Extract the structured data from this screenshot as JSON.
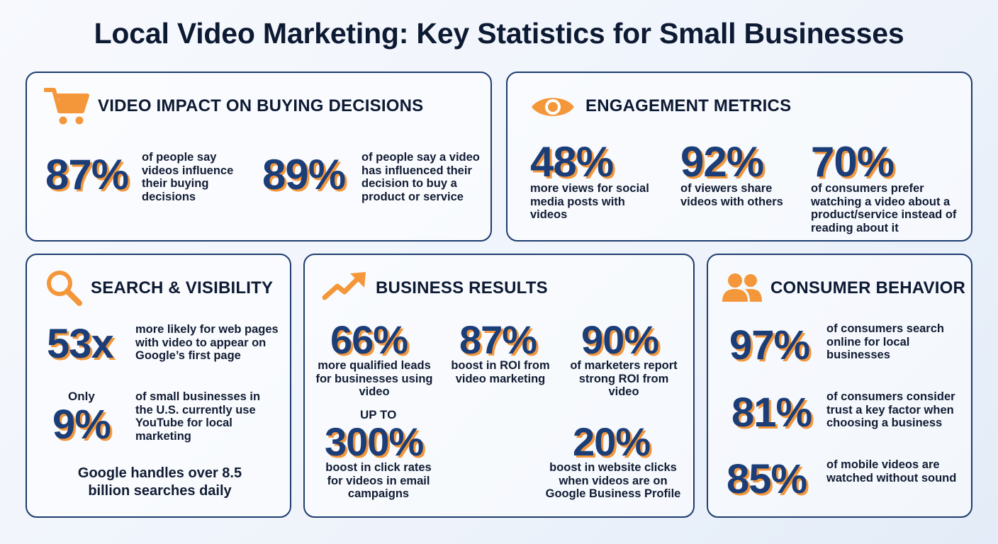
{
  "title": "Local Video Marketing: Key Statistics for Small Businesses",
  "colors": {
    "accent": "#f4973b",
    "number": "#1b3d78",
    "border": "#1e3c6e",
    "text": "#0d1a33"
  },
  "buying": {
    "icon": "shopping-cart-icon",
    "title": "VIDEO IMPACT ON BUYING DECISIONS",
    "stat1": {
      "value": "87%",
      "text": "of people say videos influence their buying decisions"
    },
    "stat2": {
      "value": "89%",
      "text": "of people say a video has influenced their decision to buy a product or service"
    }
  },
  "engagement": {
    "icon": "eye-icon",
    "title": "ENGAGEMENT METRICS",
    "stat1": {
      "value": "48%",
      "text": "more views for social media posts with videos"
    },
    "stat2": {
      "value": "92%",
      "text": "of viewers share videos with others"
    },
    "stat3": {
      "value": "70%",
      "text": "of consumers prefer watching a video about a product/service instead of reading about it"
    }
  },
  "search": {
    "icon": "magnifier-icon",
    "title": "SEARCH & VISIBILITY",
    "stat1": {
      "value": "53x",
      "text": "more likely for web pages with video to appear on Google’s first page"
    },
    "stat2": {
      "prefix": "Only",
      "value": "9%",
      "text": "of small businesses in the U.S. currently use YouTube for local marketing"
    },
    "footer": "Google handles over 8.5 billion searches daily"
  },
  "business": {
    "icon": "trending-up-icon",
    "title": "BUSINESS RESULTS",
    "stat1": {
      "value": "66%",
      "text": "more qualified leads for businesses using video"
    },
    "stat2": {
      "value": "87%",
      "text": "boost in ROI from video marketing"
    },
    "stat3": {
      "value": "90%",
      "text": "of marketers report strong ROI from video"
    },
    "stat4": {
      "prefix": "UP TO",
      "value": "300%",
      "text": "boost in click rates for videos in email campaigns"
    },
    "stat5": {
      "value": "20%",
      "text": "boost in website clicks when videos are on Google Business Profile"
    }
  },
  "consumer": {
    "icon": "users-icon",
    "title": "CONSUMER BEHAVIOR",
    "stat1": {
      "value": "97%",
      "text": "of consumers search online for local businesses"
    },
    "stat2": {
      "value": "81%",
      "text": "of consumers consider trust a key factor when choosing a business"
    },
    "stat3": {
      "value": "85%",
      "text": "of mobile videos are watched without sound"
    }
  }
}
